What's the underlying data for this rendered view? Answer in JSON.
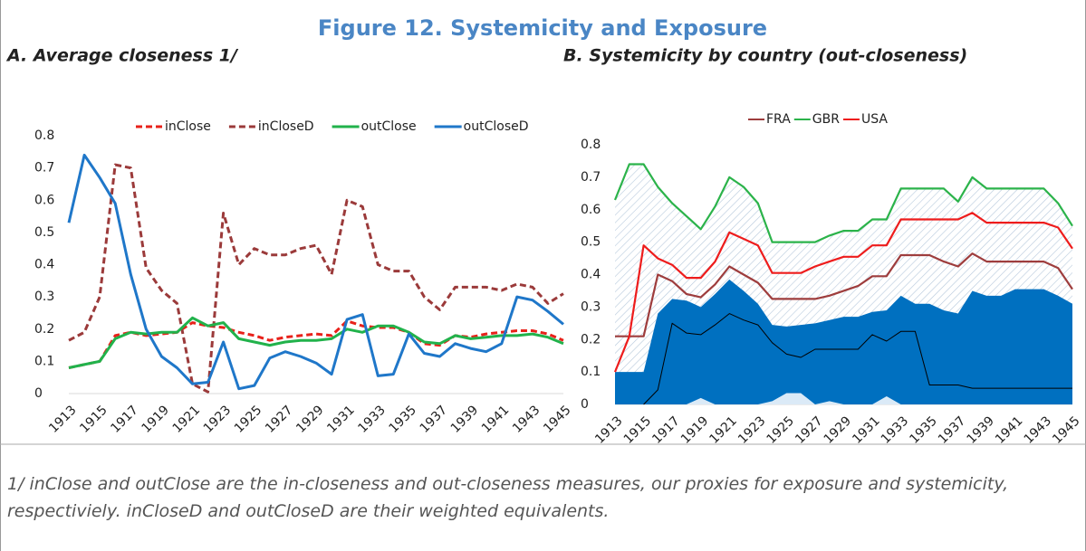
{
  "title": "Figure 12. Systemicity and Exposure",
  "footnote": "1/ inClose and outClose are the in-closeness and out-closeness measures, our proxies for exposure and systemicity, respectiviely. inCloseD and outCloseD are their weighted equivalents.",
  "chart_data": [
    {
      "type": "line",
      "title": "A. Average closeness 1/",
      "categories": [
        "1913",
        null,
        "1915",
        null,
        "1917",
        null,
        "1919",
        null,
        "1921",
        null,
        "1923",
        null,
        "1925",
        null,
        "1927",
        null,
        "1929",
        null,
        "1931",
        null,
        "1933",
        null,
        "1935",
        null,
        "1937",
        null,
        "1939",
        null,
        "1941",
        null,
        "1943",
        null,
        "1945"
      ],
      "ylim": [
        0,
        0.8
      ],
      "yticks": [
        0,
        0.1,
        0.2,
        0.3,
        0.4,
        0.5,
        0.6,
        0.7,
        0.8
      ],
      "series": [
        {
          "name": "inClose",
          "color": "#e8211a",
          "dash": true,
          "values": [
            0.08,
            0.09,
            0.1,
            0.18,
            0.19,
            0.18,
            0.185,
            0.19,
            0.22,
            0.21,
            0.205,
            0.19,
            0.18,
            0.165,
            0.175,
            0.18,
            0.185,
            0.18,
            0.225,
            0.21,
            0.205,
            0.205,
            0.19,
            0.155,
            0.15,
            0.18,
            0.175,
            0.185,
            0.19,
            0.195,
            0.195,
            0.185,
            0.165
          ]
        },
        {
          "name": "inCloseD",
          "color": "#9b3a3a",
          "dash": true,
          "values": [
            0.165,
            0.19,
            0.3,
            0.71,
            0.7,
            0.39,
            0.32,
            0.28,
            0.03,
            0.005,
            0.56,
            0.4,
            0.45,
            0.43,
            0.43,
            0.45,
            0.46,
            0.37,
            0.6,
            0.58,
            0.4,
            0.38,
            0.38,
            0.3,
            0.26,
            0.33,
            0.33,
            0.33,
            0.32,
            0.34,
            0.33,
            0.28,
            0.31
          ]
        },
        {
          "name": "outClose",
          "color": "#21b24b",
          "dash": false,
          "values": [
            0.08,
            0.09,
            0.1,
            0.17,
            0.19,
            0.185,
            0.19,
            0.19,
            0.235,
            0.21,
            0.22,
            0.17,
            0.16,
            0.15,
            0.16,
            0.165,
            0.165,
            0.17,
            0.2,
            0.19,
            0.21,
            0.21,
            0.19,
            0.16,
            0.155,
            0.18,
            0.17,
            0.175,
            0.18,
            0.18,
            0.185,
            0.175,
            0.155
          ]
        },
        {
          "name": "outCloseD",
          "color": "#1f77c9",
          "dash": false,
          "values": [
            0.53,
            0.74,
            0.67,
            0.59,
            0.37,
            0.2,
            0.115,
            0.08,
            0.03,
            0.035,
            0.16,
            0.015,
            0.025,
            0.11,
            0.13,
            0.115,
            0.095,
            0.06,
            0.23,
            0.245,
            0.055,
            0.06,
            0.185,
            0.125,
            0.115,
            0.155,
            0.14,
            0.13,
            0.155,
            0.3,
            0.29,
            0.255,
            0.215
          ]
        }
      ]
    },
    {
      "type": "area",
      "title": "B. Systemicity by country (out-closeness)",
      "categories": [
        "1913",
        null,
        "1915",
        null,
        "1917",
        null,
        "1919",
        null,
        "1921",
        null,
        "1923",
        null,
        "1925",
        null,
        "1927",
        null,
        "1929",
        null,
        "1931",
        null,
        "1933",
        null,
        "1935",
        null,
        "1937",
        null,
        "1939",
        null,
        "1941",
        null,
        "1943",
        null,
        "1945"
      ],
      "ylim": [
        0,
        0.8
      ],
      "yticks": [
        0,
        0.1,
        0.2,
        0.3,
        0.4,
        0.5,
        0.6,
        0.7,
        0.8
      ],
      "series": [
        {
          "name": "FRA",
          "color": "#9e3d3d",
          "values": [
            0.21,
            0.21,
            0.21,
            0.4,
            0.38,
            0.34,
            0.33,
            0.37,
            0.425,
            0.4,
            0.375,
            0.325,
            0.325,
            0.325,
            0.325,
            0.335,
            0.35,
            0.365,
            0.395,
            0.395,
            0.46,
            0.46,
            0.46,
            0.44,
            0.425,
            0.465,
            0.44,
            0.44,
            0.44,
            0.44,
            0.44,
            0.42,
            0.355
          ]
        },
        {
          "name": "GBR",
          "color": "#2bb34a",
          "fill": "hatch",
          "values": [
            0.63,
            0.74,
            0.74,
            0.67,
            0.62,
            0.58,
            0.54,
            0.61,
            0.7,
            0.67,
            0.62,
            0.5,
            0.5,
            0.5,
            0.5,
            0.52,
            0.535,
            0.535,
            0.57,
            0.57,
            0.665,
            0.665,
            0.665,
            0.665,
            0.625,
            0.7,
            0.665,
            0.665,
            0.665,
            0.665,
            0.665,
            0.62,
            0.55
          ]
        },
        {
          "name": "USA",
          "color": "#ee1c1c",
          "values": [
            0.1,
            0.21,
            0.49,
            0.45,
            0.43,
            0.39,
            0.39,
            0.44,
            0.53,
            0.51,
            0.49,
            0.405,
            0.405,
            0.405,
            0.425,
            0.44,
            0.455,
            0.455,
            0.49,
            0.49,
            0.57,
            0.57,
            0.57,
            0.57,
            0.57,
            0.59,
            0.56,
            0.56,
            0.56,
            0.56,
            0.56,
            0.545,
            0.48
          ]
        },
        {
          "color": "#0070c0",
          "fill": "#0070c0",
          "values": [
            0.1,
            0.1,
            0.1,
            0.28,
            0.325,
            0.32,
            0.3,
            0.34,
            0.385,
            0.35,
            0.31,
            0.245,
            0.24,
            0.245,
            0.25,
            0.26,
            0.27,
            0.27,
            0.285,
            0.29,
            0.335,
            0.31,
            0.31,
            0.29,
            0.28,
            0.35,
            0.335,
            0.335,
            0.355,
            0.355,
            0.355,
            0.335,
            0.31
          ]
        },
        {
          "color": "#dbeaf7",
          "fill": "#dbeaf7",
          "values": [
            0,
            0,
            0,
            0,
            0,
            0,
            0.02,
            0,
            0,
            0,
            0,
            0.01,
            0.035,
            0.035,
            0,
            0.01,
            0,
            0,
            0,
            0.025,
            0,
            0,
            0,
            0,
            0,
            0,
            0,
            0,
            0,
            0,
            0,
            0,
            0
          ]
        },
        {
          "color": "#000000",
          "values": [
            null,
            null,
            0,
            0.045,
            0.25,
            0.22,
            0.215,
            0.245,
            0.28,
            0.26,
            0.245,
            0.19,
            0.155,
            0.145,
            0.17,
            0.17,
            0.17,
            0.17,
            0.215,
            0.195,
            0.225,
            0.225,
            0.06,
            0.06,
            0.06,
            0.05,
            0.05,
            0.05,
            0.05,
            0.05,
            0.05,
            0.05,
            0.05
          ]
        }
      ]
    }
  ]
}
